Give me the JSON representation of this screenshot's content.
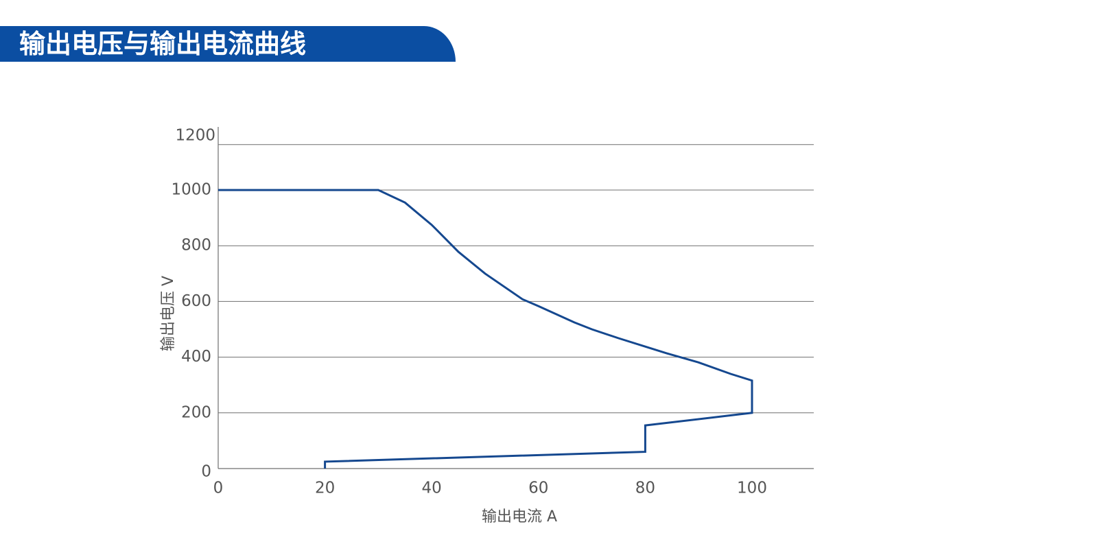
{
  "banner": {
    "title": "输出电压与输出电流曲线"
  },
  "colors": {
    "accent": "#0b4ea2",
    "curve": "#15488f",
    "grid": "#6f6f6f",
    "axis_text": "#555555"
  },
  "chart_data": {
    "type": "line",
    "title": "",
    "xlabel": "输出电流   A",
    "ylabel": "输出电压   V",
    "xlim": [
      0,
      112
    ],
    "ylim": [
      0,
      1200
    ],
    "xticks": [
      "0",
      "20",
      "40",
      "60",
      "80",
      "100"
    ],
    "yticks": [
      "0",
      "200",
      "400",
      "600",
      "800",
      "1000",
      "1200"
    ],
    "grid": "horizontal",
    "series": [
      {
        "x": [
          20,
          20,
          80,
          80,
          100,
          100,
          96,
          90,
          84,
          80,
          75,
          70,
          66.7,
          60,
          57,
          50,
          45,
          40,
          35,
          30,
          0
        ],
        "y": [
          0,
          25,
          60,
          155,
          200,
          316,
          340,
          381,
          414,
          438,
          468,
          500,
          525,
          583,
          608,
          700,
          778,
          875,
          955,
          1000,
          1000
        ]
      }
    ]
  }
}
